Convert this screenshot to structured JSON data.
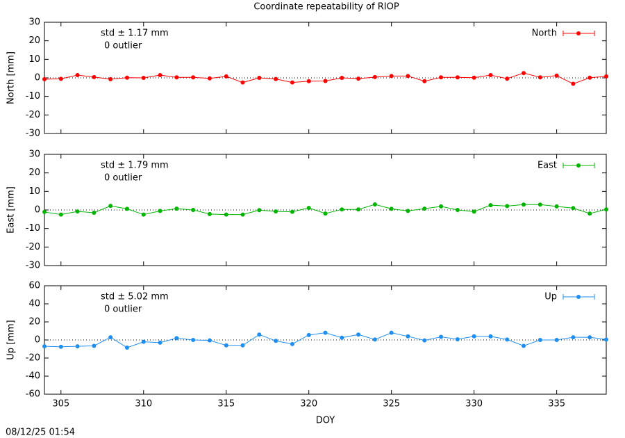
{
  "title": "Coordinate repeatability of RIOP",
  "timestamp": "08/12/25 01:54",
  "chart_data": [
    {
      "type": "line",
      "ylabel": "North [mm]",
      "annotations": [
        "std ± 1.17 mm",
        "0 outlier"
      ],
      "x": [
        304,
        305,
        306,
        307,
        308,
        309,
        310,
        311,
        312,
        313,
        314,
        315,
        316,
        317,
        318,
        319,
        320,
        321,
        322,
        323,
        324,
        325,
        326,
        327,
        328,
        329,
        330,
        331,
        332,
        333,
        334,
        335,
        336,
        337,
        338
      ],
      "series": [
        {
          "name": "North",
          "color": "#ff0000",
          "values": [
            -0.7,
            -0.5,
            1.5,
            0.4,
            -0.7,
            0.1,
            0,
            1.5,
            0.3,
            0.3,
            -0.3,
            0.8,
            -2.5,
            0,
            -0.6,
            -2.5,
            -1.8,
            -1.7,
            0,
            -0.4,
            0.4,
            1,
            1,
            -1.8,
            0.3,
            0.3,
            0.1,
            1.5,
            -0.4,
            2.6,
            0.3,
            1.2,
            -3.2,
            0.1,
            0.8
          ]
        }
      ],
      "xlim": [
        304,
        338
      ],
      "xticks": [
        305,
        310,
        315,
        320,
        325,
        330,
        335
      ],
      "ylim": [
        -30,
        30
      ],
      "yticks": [
        -30,
        -20,
        -10,
        0,
        10,
        20,
        30
      ],
      "zero_line": true,
      "legend": "top-right"
    },
    {
      "type": "line",
      "ylabel": "East [mm]",
      "annotations": [
        "std ± 1.79 mm",
        "0 outlier"
      ],
      "x": [
        304,
        305,
        306,
        307,
        308,
        309,
        310,
        311,
        312,
        313,
        314,
        315,
        316,
        317,
        318,
        319,
        320,
        321,
        322,
        323,
        324,
        325,
        326,
        327,
        328,
        329,
        330,
        331,
        332,
        333,
        334,
        335,
        336,
        337,
        338
      ],
      "series": [
        {
          "name": "East",
          "color": "#00b400",
          "values": [
            -1.1,
            -2.5,
            -0.8,
            -1.5,
            2.2,
            0.6,
            -2.5,
            -0.5,
            0.7,
            0,
            -2.2,
            -2.5,
            -2.5,
            -0.1,
            -0.8,
            -1,
            1.1,
            -1.9,
            0.3,
            0.3,
            3,
            0.6,
            -0.5,
            0.7,
            1.9,
            0,
            -0.9,
            2.6,
            2.1,
            2.9,
            2.9,
            1.9,
            1,
            -1.9,
            0.3
          ]
        }
      ],
      "xlim": [
        304,
        338
      ],
      "xticks": [
        305,
        310,
        315,
        320,
        325,
        330,
        335
      ],
      "ylim": [
        -30,
        30
      ],
      "yticks": [
        -30,
        -20,
        -10,
        0,
        10,
        20,
        30
      ],
      "zero_line": true,
      "legend": "top-right"
    },
    {
      "type": "line",
      "ylabel": "Up [mm]",
      "xlabel": "DOY",
      "annotations": [
        "std ± 5.02 mm",
        "0 outlier"
      ],
      "x": [
        304,
        305,
        306,
        307,
        308,
        309,
        310,
        311,
        312,
        313,
        314,
        315,
        316,
        317,
        318,
        319,
        320,
        321,
        322,
        323,
        324,
        325,
        326,
        327,
        328,
        329,
        330,
        331,
        332,
        333,
        334,
        335,
        336,
        337,
        338
      ],
      "series": [
        {
          "name": "Up",
          "color": "#1e8ff0",
          "values": [
            -7,
            -7.5,
            -7,
            -6.5,
            3,
            -8.5,
            -2,
            -3,
            2,
            0,
            -0.5,
            -6,
            -6,
            6,
            -1,
            -4.5,
            5.5,
            8,
            2.5,
            6,
            0.5,
            8,
            4,
            -0.5,
            3.5,
            0.8,
            4,
            4,
            0.5,
            -6.5,
            0,
            0,
            3,
            3,
            0.5
          ]
        }
      ],
      "xlim": [
        304,
        338
      ],
      "xticks": [
        305,
        310,
        315,
        320,
        325,
        330,
        335
      ],
      "ylim": [
        -60,
        60
      ],
      "yticks": [
        -60,
        -40,
        -20,
        0,
        20,
        40,
        60
      ],
      "zero_line": true,
      "legend": "top-right"
    }
  ]
}
